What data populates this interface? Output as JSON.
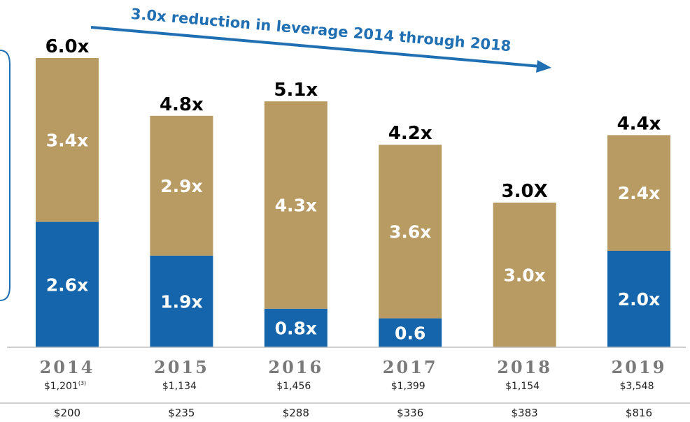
{
  "chart_data": {
    "type": "bar",
    "stacked": true,
    "annotation": "3.0x reduction in leverage 2014 through 2018",
    "categories": [
      "2014",
      "2015",
      "2016",
      "2017",
      "2018",
      "2019"
    ],
    "totals": [
      "6.0x",
      "4.8x",
      "5.1x",
      "4.2x",
      "3.0X",
      "4.4x"
    ],
    "total_values": [
      6.0,
      4.8,
      5.1,
      4.2,
      3.0,
      4.4
    ],
    "series": [
      {
        "values": [
          2.6,
          1.9,
          0.8,
          0.6,
          0,
          2.0
        ],
        "labels": [
          "2.6x",
          "1.9x",
          "0.8x",
          "0.6",
          "",
          "2.0x"
        ],
        "color": "#1565ad"
      },
      {
        "values": [
          3.4,
          2.9,
          4.3,
          3.6,
          3.0,
          2.4
        ],
        "labels": [
          "3.4x",
          "2.9x",
          "4.3x",
          "3.6x",
          "3.0x",
          "2.4x"
        ],
        "color": "#b89b62"
      }
    ],
    "sub_labels": [
      "$1,201",
      "$1,134",
      "$1,456",
      "$1,399",
      "$1,154",
      "$3,548"
    ],
    "sub_label_notes": [
      "(3)",
      "",
      "",
      "",
      "",
      ""
    ],
    "bottom_labels": [
      "$200",
      "$235",
      "$288",
      "$336",
      "$383",
      "$816"
    ],
    "ylim": [
      0,
      6.0
    ],
    "legend": "none",
    "grid": false
  },
  "colors": {
    "segment_blue": "#1565ad",
    "segment_tan": "#b89b62",
    "arrow": "#1f6fb2",
    "axis": "#bfbfbf"
  }
}
